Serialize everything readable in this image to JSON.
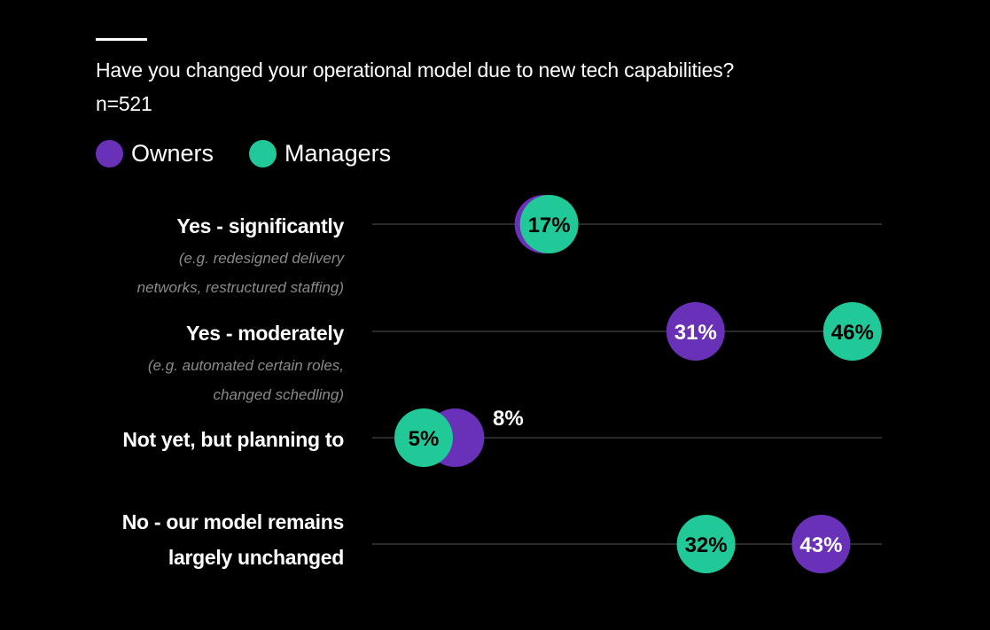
{
  "title": "Have you changed your operational model due to new tech capabilities?",
  "subtitle": "n=521",
  "chart_data": {
    "type": "scatter",
    "title": "Have you changed your operational model due to new tech capabilities?",
    "subtitle": "n=521",
    "xlim": [
      0,
      50
    ],
    "grid": false,
    "legend_position": "top-left",
    "legend": [
      {
        "name": "Owners",
        "color": "#6930b8"
      },
      {
        "name": "Managers",
        "color": "#20c997"
      }
    ],
    "categories": [
      {
        "label": "Yes - significantly",
        "note": "(e.g. redesigned delivery\nnetworks, restructured staffing)"
      },
      {
        "label": "Yes -  moderately",
        "note": "(e.g. automated certain roles,\nchanged schedling)"
      },
      {
        "label": "Not yet, but planning to",
        "note": ""
      },
      {
        "label": "No - our model remains\nlargely unchanged",
        "note": ""
      }
    ],
    "series": [
      {
        "name": "Owners",
        "values": [
          17,
          31,
          8,
          43
        ]
      },
      {
        "name": "Managers",
        "values": [
          17,
          46,
          5,
          32
        ]
      }
    ]
  }
}
